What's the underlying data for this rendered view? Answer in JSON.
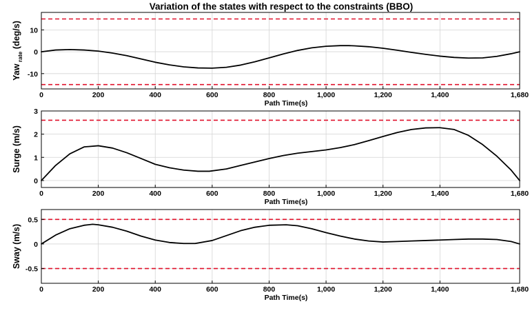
{
  "figure_title": "Variation of the states with respect to the constraints (BBO)",
  "colors": {
    "state_line": "#000000",
    "constraint_line": "#e0102a",
    "grid": "#d4d4d4",
    "axes": "#000000"
  },
  "chart_data": [
    {
      "type": "line",
      "title": "Variation of the states with respect to the constraints (BBO)",
      "xlabel": "Path Time(s)",
      "ylabel_main": "Yaw",
      "ylabel_sub": "rate",
      "ylabel_unit": "(deg/s)",
      "xlim": [
        0,
        1680
      ],
      "ylim": [
        -17,
        18
      ],
      "grid": true,
      "xticks": [
        0,
        200,
        400,
        600,
        800,
        1000,
        1200,
        1400,
        1680
      ],
      "xtick_labels": [
        "0",
        "200",
        "400",
        "600",
        "800",
        "1,000",
        "1,200",
        "1,400",
        "1,680"
      ],
      "yticks": [
        10,
        0,
        -10
      ],
      "ytick_labels": [
        "10",
        "0",
        "-10"
      ],
      "series": [
        {
          "style": "solid",
          "color": "#000000",
          "x": [
            0,
            50,
            100,
            150,
            200,
            250,
            300,
            350,
            400,
            450,
            500,
            550,
            600,
            650,
            700,
            750,
            800,
            850,
            900,
            950,
            1000,
            1050,
            1080,
            1100,
            1150,
            1200,
            1250,
            1300,
            1350,
            1400,
            1450,
            1500,
            1550,
            1600,
            1650,
            1680
          ],
          "y": [
            0,
            0.8,
            1.0,
            0.8,
            0.3,
            -0.6,
            -1.8,
            -3.3,
            -4.8,
            -6.0,
            -6.9,
            -7.4,
            -7.5,
            -7.1,
            -6.1,
            -4.6,
            -2.8,
            -1.0,
            0.6,
            1.8,
            2.5,
            2.8,
            2.8,
            2.7,
            2.3,
            1.6,
            0.7,
            -0.3,
            -1.2,
            -2.0,
            -2.6,
            -2.9,
            -2.8,
            -2.1,
            -0.9,
            0
          ]
        },
        {
          "style": "dashed",
          "color": "#e0102a",
          "x": [
            0,
            1680
          ],
          "y": [
            15,
            15
          ]
        },
        {
          "style": "dashed",
          "color": "#e0102a",
          "x": [
            0,
            1680
          ],
          "y": [
            -15,
            -15
          ]
        }
      ]
    },
    {
      "type": "line",
      "xlabel": "Path Time(s)",
      "ylabel_main": "Surge (m/s)",
      "xlim": [
        0,
        1680
      ],
      "ylim": [
        -0.3,
        3
      ],
      "grid": true,
      "xticks": [
        0,
        200,
        400,
        600,
        800,
        1000,
        1200,
        1400,
        1680
      ],
      "xtick_labels": [
        "0",
        "200",
        "400",
        "600",
        "800",
        "1,000",
        "1,200",
        "1,400",
        "1,680"
      ],
      "yticks": [
        3,
        2,
        1,
        0
      ],
      "ytick_labels": [
        "3",
        "2",
        "1",
        "0"
      ],
      "series": [
        {
          "style": "solid",
          "color": "#000000",
          "x": [
            0,
            50,
            100,
            150,
            200,
            250,
            300,
            350,
            400,
            450,
            500,
            550,
            590,
            650,
            700,
            750,
            800,
            850,
            900,
            950,
            1000,
            1050,
            1100,
            1150,
            1200,
            1250,
            1300,
            1350,
            1400,
            1450,
            1500,
            1550,
            1600,
            1650,
            1680
          ],
          "y": [
            0,
            0.65,
            1.15,
            1.45,
            1.5,
            1.4,
            1.2,
            0.95,
            0.7,
            0.55,
            0.45,
            0.4,
            0.4,
            0.5,
            0.65,
            0.8,
            0.95,
            1.08,
            1.18,
            1.25,
            1.32,
            1.42,
            1.55,
            1.72,
            1.9,
            2.07,
            2.2,
            2.27,
            2.28,
            2.2,
            1.95,
            1.55,
            1.05,
            0.45,
            0
          ]
        },
        {
          "style": "dashed",
          "color": "#e0102a",
          "x": [
            0,
            1680
          ],
          "y": [
            2.6,
            2.6
          ]
        }
      ]
    },
    {
      "type": "line",
      "xlabel": "Path Time(s)",
      "ylabel_main": "Sway (m/s)",
      "xlim": [
        0,
        1680
      ],
      "ylim": [
        -0.8,
        0.7
      ],
      "grid": true,
      "xticks": [
        0,
        200,
        400,
        600,
        800,
        1000,
        1200,
        1400,
        1680
      ],
      "xtick_labels": [
        "0",
        "200",
        "400",
        "600",
        "800",
        "1,000",
        "1,200",
        "1,400",
        "1,680"
      ],
      "yticks": [
        0.5,
        0,
        -0.5
      ],
      "ytick_labels": [
        "0.5",
        "0",
        "-0.5"
      ],
      "series": [
        {
          "style": "solid",
          "color": "#000000",
          "x": [
            0,
            50,
            100,
            150,
            180,
            200,
            250,
            300,
            350,
            400,
            450,
            500,
            540,
            600,
            650,
            700,
            750,
            800,
            860,
            900,
            950,
            1000,
            1050,
            1100,
            1150,
            1200,
            1250,
            1300,
            1350,
            1400,
            1450,
            1500,
            1550,
            1600,
            1650,
            1680
          ],
          "y": [
            0,
            0.18,
            0.31,
            0.38,
            0.4,
            0.39,
            0.34,
            0.26,
            0.16,
            0.08,
            0.03,
            0.01,
            0.01,
            0.07,
            0.17,
            0.27,
            0.34,
            0.38,
            0.39,
            0.37,
            0.31,
            0.23,
            0.16,
            0.1,
            0.06,
            0.04,
            0.05,
            0.06,
            0.07,
            0.08,
            0.09,
            0.1,
            0.1,
            0.09,
            0.05,
            0
          ]
        },
        {
          "style": "dashed",
          "color": "#e0102a",
          "x": [
            0,
            1680
          ],
          "y": [
            0.5,
            0.5
          ]
        },
        {
          "style": "dashed",
          "color": "#e0102a",
          "x": [
            0,
            1680
          ],
          "y": [
            -0.5,
            -0.5
          ]
        }
      ]
    }
  ]
}
